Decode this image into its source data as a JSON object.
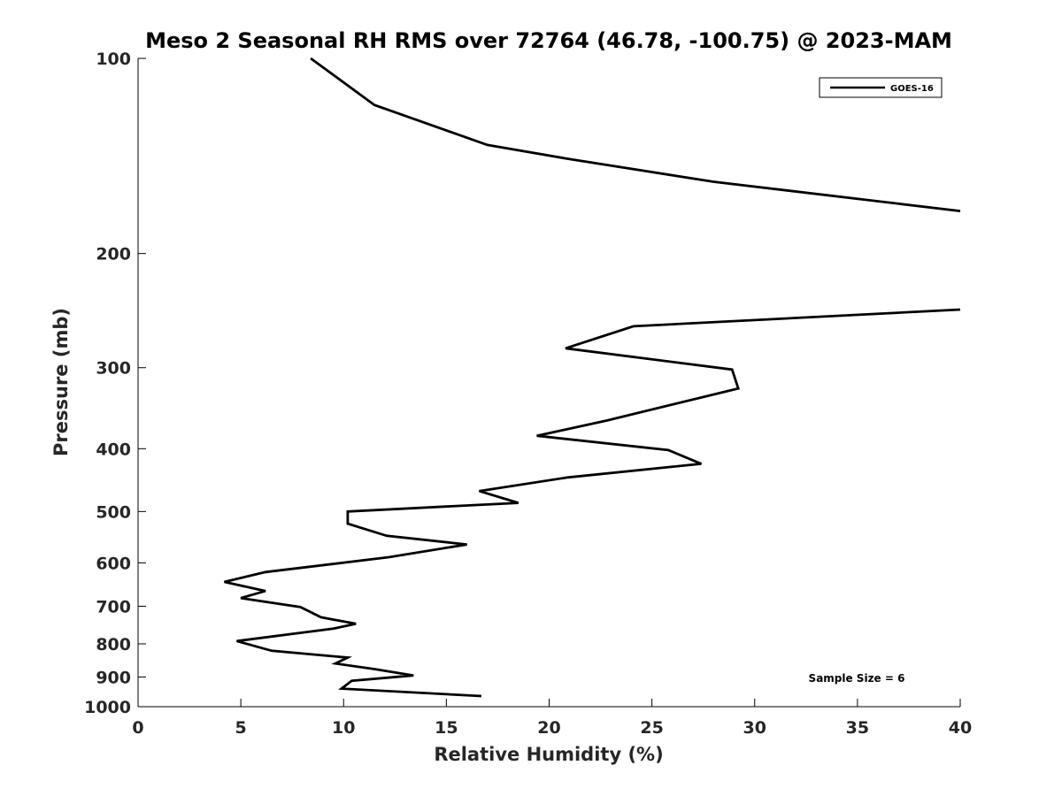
{
  "chart_data": {
    "type": "line",
    "title": "Meso 2 Seasonal RH RMS over 72764 (46.78, -100.75) @ 2023-MAM",
    "xlabel": "Relative Humidity (%)",
    "ylabel": "Pressure (mb)",
    "xlim": [
      0,
      40
    ],
    "ylim": [
      1000,
      100
    ],
    "y_scale": "log",
    "y_reversed": true,
    "grid": false,
    "legend_position": "top-right",
    "x_ticks": [
      0,
      5,
      10,
      15,
      20,
      25,
      30,
      35,
      40
    ],
    "y_ticks": [
      100,
      200,
      300,
      400,
      500,
      600,
      700,
      800,
      900,
      1000
    ],
    "annotation": "Sample Size = 6",
    "series": [
      {
        "name": "GOES-16",
        "color": "#000000",
        "points": [
          [
            8.4,
            100
          ],
          [
            11.5,
            118
          ],
          [
            17.0,
            136
          ],
          [
            21.0,
            143
          ],
          [
            28.0,
            155
          ],
          [
            40,
            172
          ],
          null,
          [
            40,
            244
          ],
          [
            24.1,
            259
          ],
          [
            20.8,
            280
          ],
          [
            28.9,
            302
          ],
          [
            29.2,
            323
          ],
          [
            22.8,
            362
          ],
          [
            19.4,
            382
          ],
          [
            25.8,
            402
          ],
          [
            27.4,
            422
          ],
          [
            20.9,
            443
          ],
          [
            16.6,
            465
          ],
          [
            18.5,
            485
          ],
          [
            10.2,
            500
          ],
          [
            10.2,
            522
          ],
          [
            12.1,
            545
          ],
          [
            16.0,
            562
          ],
          [
            12.2,
            588
          ],
          [
            6.2,
            620
          ],
          [
            4.2,
            642
          ],
          [
            6.2,
            663
          ],
          [
            5.0,
            680
          ],
          [
            7.9,
            702
          ],
          [
            8.9,
            728
          ],
          [
            10.6,
            745
          ],
          [
            9.5,
            758
          ],
          [
            4.8,
            792
          ],
          [
            6.5,
            820
          ],
          [
            10.2,
            840
          ],
          [
            9.6,
            858
          ],
          [
            11.5,
            875
          ],
          [
            13.4,
            895
          ],
          [
            10.4,
            912
          ],
          [
            9.9,
            938
          ],
          [
            16.7,
            963
          ]
        ]
      }
    ]
  }
}
